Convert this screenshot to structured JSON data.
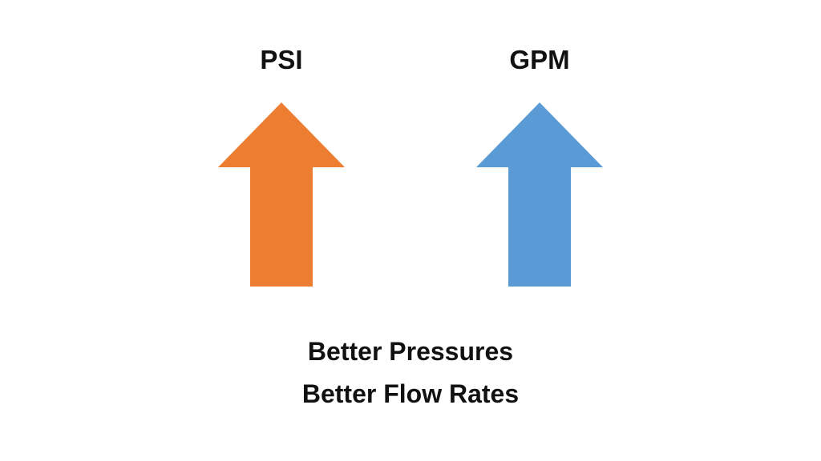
{
  "labels": {
    "left": "PSI",
    "right": "GPM"
  },
  "arrows": {
    "left": {
      "direction": "up",
      "color": "#ED7D31",
      "icon": "arrow-up-icon"
    },
    "right": {
      "direction": "up",
      "color": "#5B9BD5",
      "icon": "arrow-up-icon"
    }
  },
  "caption": {
    "line1": "Better Pressures",
    "line2": "Better Flow Rates"
  }
}
